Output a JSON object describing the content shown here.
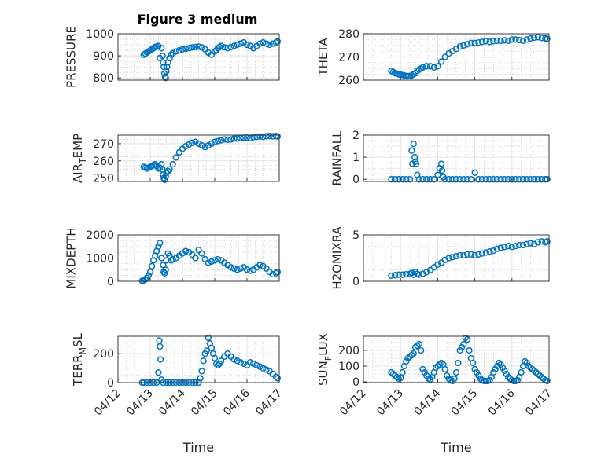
{
  "figure_title": "Figure 3 medium",
  "colors": {
    "marker": "#0072BD",
    "axis": "#262626",
    "grid": "#b8b8b8"
  },
  "chart_data": [
    {
      "type": "scatter",
      "ylabel": "PRESSURE",
      "ylabel_parts": [
        {
          "t": "PRESSURE",
          "sub": false
        }
      ],
      "xlabel": "",
      "ylim": [
        790,
        1000
      ],
      "yticks": [
        800,
        900,
        1000
      ],
      "ytick_labels": [
        "800",
        "900",
        "1000"
      ],
      "x": [
        0.8,
        0.85,
        0.9,
        0.95,
        1.0,
        1.05,
        1.1,
        1.15,
        1.2,
        1.25,
        1.3,
        1.35,
        1.38,
        1.4,
        1.42,
        1.44,
        1.46,
        1.48,
        1.5,
        1.52,
        1.55,
        1.6,
        1.65,
        1.7,
        1.8,
        1.9,
        2.0,
        2.1,
        2.2,
        2.3,
        2.4,
        2.5,
        2.6,
        2.7,
        2.8,
        2.9,
        3.0,
        3.05,
        3.1,
        3.15,
        3.2,
        3.3,
        3.4,
        3.5,
        3.6,
        3.7,
        3.8,
        3.9,
        4.0,
        4.1,
        4.2,
        4.3,
        4.4,
        4.5,
        4.6,
        4.7,
        4.8,
        4.9,
        4.95
      ],
      "y": [
        905,
        910,
        915,
        920,
        925,
        930,
        935,
        940,
        942,
        945,
        890,
        935,
        900,
        870,
        850,
        820,
        805,
        800,
        830,
        850,
        870,
        890,
        905,
        912,
        920,
        925,
        930,
        932,
        935,
        938,
        940,
        942,
        938,
        930,
        915,
        905,
        920,
        925,
        935,
        940,
        945,
        938,
        935,
        940,
        945,
        950,
        955,
        960,
        950,
        945,
        935,
        945,
        955,
        960,
        955,
        950,
        955,
        960,
        965
      ]
    },
    {
      "type": "scatter",
      "ylabel": "THETA",
      "ylabel_parts": [
        {
          "t": "THETA",
          "sub": false
        }
      ],
      "xlabel": "",
      "ylim": [
        260,
        280
      ],
      "yticks": [
        260,
        270,
        280
      ],
      "ytick_labels": [
        "260",
        "270",
        "280"
      ],
      "x": [
        0.75,
        0.8,
        0.85,
        0.9,
        0.95,
        1.0,
        1.05,
        1.1,
        1.15,
        1.2,
        1.25,
        1.3,
        1.35,
        1.4,
        1.45,
        1.5,
        1.55,
        1.6,
        1.7,
        1.8,
        1.9,
        2.0,
        2.1,
        2.2,
        2.3,
        2.4,
        2.5,
        2.6,
        2.7,
        2.8,
        2.9,
        3.0,
        3.1,
        3.2,
        3.3,
        3.4,
        3.5,
        3.6,
        3.7,
        3.8,
        3.9,
        4.0,
        4.1,
        4.2,
        4.3,
        4.4,
        4.5,
        4.6,
        4.7,
        4.8,
        4.9,
        4.95
      ],
      "y": [
        264,
        263.5,
        263,
        262.8,
        262.5,
        262.3,
        262.2,
        262,
        261.8,
        261.7,
        261.8,
        262,
        262.5,
        263,
        264,
        264.5,
        265,
        265.5,
        266,
        266,
        265.5,
        266,
        268,
        270,
        271.5,
        272.5,
        273.5,
        274.5,
        275,
        275.5,
        276,
        276,
        276.2,
        276.5,
        276.8,
        276.5,
        276.8,
        277,
        277,
        277.2,
        277,
        277.5,
        277.5,
        277.3,
        277,
        277.5,
        278,
        278.3,
        278.5,
        278.2,
        278,
        277.8
      ]
    },
    {
      "type": "scatter",
      "ylabel": "AIR_TEMP",
      "ylabel_parts": [
        {
          "t": "AIR",
          "sub": false
        },
        {
          "t": "T",
          "sub": true
        },
        {
          "t": "EMP",
          "sub": false
        }
      ],
      "xlabel": "",
      "ylim": [
        248,
        275
      ],
      "yticks": [
        250,
        260,
        270
      ],
      "ytick_labels": [
        "250",
        "260",
        "270"
      ],
      "x": [
        0.8,
        0.85,
        0.9,
        0.95,
        1.0,
        1.05,
        1.1,
        1.15,
        1.2,
        1.25,
        1.3,
        1.35,
        1.38,
        1.4,
        1.42,
        1.45,
        1.48,
        1.5,
        1.55,
        1.6,
        1.7,
        1.8,
        1.9,
        2.0,
        2.1,
        2.2,
        2.3,
        2.4,
        2.5,
        2.6,
        2.7,
        2.8,
        2.9,
        3.0,
        3.1,
        3.2,
        3.3,
        3.4,
        3.5,
        3.6,
        3.7,
        3.8,
        3.9,
        4.0,
        4.1,
        4.2,
        4.3,
        4.4,
        4.5,
        4.6,
        4.7,
        4.8,
        4.9,
        4.95
      ],
      "y": [
        256.5,
        256,
        255.5,
        256,
        256.5,
        257,
        257.5,
        258,
        257,
        255.5,
        256,
        258,
        255,
        252,
        250,
        249,
        251,
        253,
        254,
        255,
        258,
        262,
        265,
        267,
        268.5,
        269.5,
        270.5,
        271,
        270,
        269,
        268,
        269,
        270,
        271,
        271.5,
        272,
        272.5,
        272.3,
        272.5,
        273,
        273,
        273.2,
        273.5,
        273.5,
        273.3,
        273.8,
        274,
        274.2,
        274,
        274.3,
        274.5,
        274.3,
        274.5,
        274.2
      ]
    },
    {
      "type": "scatter",
      "ylabel": "RAINFALL",
      "ylabel_parts": [
        {
          "t": "RAINFALL",
          "sub": false
        }
      ],
      "xlabel": "",
      "ylim": [
        -0.1,
        2
      ],
      "yticks": [
        0,
        1,
        2
      ],
      "ytick_labels": [
        "0",
        "1",
        "2"
      ],
      "x": [
        0.75,
        0.85,
        0.95,
        1.05,
        1.15,
        1.25,
        1.3,
        1.32,
        1.35,
        1.38,
        1.4,
        1.42,
        1.45,
        1.5,
        1.6,
        1.7,
        1.8,
        1.9,
        2.0,
        2.05,
        2.1,
        2.12,
        2.15,
        2.2,
        2.3,
        2.4,
        2.5,
        2.6,
        2.7,
        2.8,
        2.9,
        3.0,
        3.1,
        3.2,
        3.3,
        3.4,
        3.5,
        3.6,
        3.7,
        3.8,
        3.9,
        4.0,
        4.1,
        4.2,
        4.3,
        4.4,
        4.5,
        4.6,
        4.7,
        4.8,
        4.9,
        4.95
      ],
      "y": [
        0,
        0,
        0,
        0,
        0,
        0,
        1.3,
        0.7,
        1.6,
        1.0,
        0.8,
        0.7,
        0.2,
        0,
        0,
        0,
        0,
        0,
        0.2,
        0.5,
        0.7,
        0.4,
        0.1,
        0,
        0,
        0,
        0,
        0,
        0,
        0,
        0,
        0.3,
        0,
        0,
        0,
        0,
        0,
        0,
        0,
        0,
        0,
        0,
        0,
        0,
        0,
        0,
        0,
        0,
        0,
        0,
        0,
        0
      ]
    },
    {
      "type": "scatter",
      "ylabel": "MIXDEPTH",
      "ylabel_parts": [
        {
          "t": "MIXDEPTH",
          "sub": false
        }
      ],
      "xlabel": "",
      "ylim": [
        0,
        2000
      ],
      "yticks": [
        0,
        1000,
        2000
      ],
      "ytick_labels": [
        "0",
        "1000",
        "2000"
      ],
      "x": [
        0.75,
        0.8,
        0.85,
        0.9,
        0.95,
        1.0,
        1.05,
        1.1,
        1.15,
        1.2,
        1.25,
        1.3,
        1.35,
        1.4,
        1.42,
        1.45,
        1.48,
        1.5,
        1.55,
        1.6,
        1.65,
        1.7,
        1.8,
        1.9,
        2.0,
        2.1,
        2.2,
        2.3,
        2.4,
        2.5,
        2.6,
        2.7,
        2.8,
        2.9,
        3.0,
        3.1,
        3.2,
        3.3,
        3.4,
        3.5,
        3.6,
        3.7,
        3.8,
        3.9,
        4.0,
        4.1,
        4.2,
        4.3,
        4.4,
        4.5,
        4.6,
        4.7,
        4.8,
        4.9,
        4.95
      ],
      "y": [
        20,
        40,
        80,
        150,
        250,
        400,
        650,
        900,
        1100,
        1300,
        1500,
        1650,
        1000,
        700,
        400,
        350,
        500,
        900,
        1200,
        1100,
        900,
        950,
        1000,
        1100,
        1200,
        1300,
        1250,
        1150,
        1000,
        1350,
        1200,
        950,
        800,
        850,
        900,
        950,
        900,
        800,
        700,
        600,
        550,
        500,
        550,
        600,
        500,
        450,
        500,
        600,
        700,
        650,
        550,
        400,
        300,
        350,
        400
      ]
    },
    {
      "type": "scatter",
      "ylabel": "H2OMIXRA",
      "ylabel_parts": [
        {
          "t": "H2OMIXRA",
          "sub": false
        }
      ],
      "xlabel": "",
      "ylim": [
        0,
        5
      ],
      "yticks": [
        0,
        5
      ],
      "ytick_labels": [
        "0",
        "5"
      ],
      "x": [
        0.75,
        0.85,
        0.95,
        1.05,
        1.15,
        1.25,
        1.3,
        1.35,
        1.4,
        1.45,
        1.5,
        1.6,
        1.7,
        1.8,
        1.9,
        2.0,
        2.1,
        2.2,
        2.3,
        2.4,
        2.5,
        2.6,
        2.7,
        2.8,
        2.9,
        3.0,
        3.1,
        3.2,
        3.3,
        3.4,
        3.5,
        3.6,
        3.7,
        3.8,
        3.9,
        4.0,
        4.1,
        4.2,
        4.3,
        4.4,
        4.5,
        4.6,
        4.7,
        4.8,
        4.9,
        4.95
      ],
      "y": [
        0.6,
        0.65,
        0.7,
        0.7,
        0.75,
        0.8,
        0.9,
        0.7,
        1.0,
        0.8,
        0.7,
        0.8,
        1.0,
        1.2,
        1.5,
        1.8,
        2.0,
        2.3,
        2.5,
        2.6,
        2.7,
        2.8,
        2.8,
        2.9,
        2.9,
        2.8,
        2.9,
        3.0,
        3.1,
        3.2,
        3.3,
        3.5,
        3.6,
        3.7,
        3.8,
        3.7,
        3.8,
        3.9,
        3.9,
        4.0,
        4.1,
        4.0,
        4.2,
        4.3,
        4.2,
        4.3
      ]
    },
    {
      "type": "scatter",
      "ylabel": "TERR_MSL",
      "ylabel_parts": [
        {
          "t": "TERR",
          "sub": false
        },
        {
          "t": "M",
          "sub": true
        },
        {
          "t": "SL",
          "sub": false
        }
      ],
      "xlabel": "Time",
      "ylim": [
        0,
        320
      ],
      "yticks": [
        0,
        200
      ],
      "ytick_labels": [
        "0",
        "200"
      ],
      "x": [
        0.75,
        0.8,
        0.9,
        1.0,
        1.1,
        1.2,
        1.25,
        1.28,
        1.3,
        1.32,
        1.35,
        1.4,
        1.5,
        1.6,
        1.7,
        1.8,
        1.9,
        2.0,
        2.1,
        2.2,
        2.3,
        2.4,
        2.5,
        2.55,
        2.6,
        2.65,
        2.7,
        2.75,
        2.8,
        2.85,
        2.9,
        2.95,
        3.0,
        3.05,
        3.1,
        3.15,
        3.2,
        3.3,
        3.4,
        3.5,
        3.6,
        3.7,
        3.8,
        3.9,
        4.0,
        4.1,
        4.2,
        4.3,
        4.4,
        4.5,
        4.6,
        4.7,
        4.8,
        4.9,
        4.95
      ],
      "y": [
        0,
        0,
        0,
        0,
        0,
        0,
        70,
        290,
        250,
        160,
        20,
        0,
        0,
        0,
        0,
        0,
        0,
        0,
        0,
        0,
        0,
        0,
        0,
        30,
        80,
        150,
        200,
        220,
        310,
        270,
        240,
        200,
        170,
        130,
        120,
        130,
        150,
        180,
        200,
        180,
        160,
        150,
        140,
        130,
        120,
        140,
        130,
        120,
        110,
        100,
        90,
        80,
        60,
        40,
        30
      ]
    },
    {
      "type": "scatter",
      "ylabel": "SUN_FLUX",
      "ylabel_parts": [
        {
          "t": "SUN",
          "sub": false
        },
        {
          "t": "F",
          "sub": true
        },
        {
          "t": "LUX",
          "sub": false
        }
      ],
      "xlabel": "Time",
      "ylim": [
        -5,
        290
      ],
      "yticks": [
        0,
        100,
        200
      ],
      "ytick_labels": [
        "0",
        "100",
        "200"
      ],
      "x": [
        0.75,
        0.8,
        0.85,
        0.9,
        0.95,
        1.0,
        1.05,
        1.1,
        1.15,
        1.2,
        1.25,
        1.3,
        1.35,
        1.4,
        1.45,
        1.5,
        1.55,
        1.6,
        1.65,
        1.7,
        1.75,
        1.8,
        1.85,
        1.9,
        1.95,
        2.0,
        2.05,
        2.1,
        2.15,
        2.2,
        2.25,
        2.3,
        2.35,
        2.4,
        2.45,
        2.5,
        2.55,
        2.6,
        2.65,
        2.7,
        2.75,
        2.8,
        2.85,
        2.9,
        2.95,
        3.0,
        3.05,
        3.1,
        3.15,
        3.2,
        3.25,
        3.3,
        3.35,
        3.4,
        3.45,
        3.5,
        3.55,
        3.6,
        3.65,
        3.7,
        3.75,
        3.8,
        3.85,
        3.9,
        3.95,
        4.0,
        4.05,
        4.1,
        4.15,
        4.2,
        4.25,
        4.3,
        4.35,
        4.4,
        4.45,
        4.5,
        4.55,
        4.6,
        4.65,
        4.7,
        4.75,
        4.8,
        4.85,
        4.9,
        4.95
      ],
      "y": [
        60,
        50,
        40,
        30,
        20,
        25,
        60,
        100,
        130,
        150,
        160,
        170,
        180,
        220,
        230,
        240,
        200,
        80,
        60,
        40,
        20,
        15,
        30,
        60,
        90,
        100,
        110,
        120,
        110,
        80,
        40,
        20,
        10,
        5,
        20,
        60,
        120,
        200,
        220,
        240,
        280,
        270,
        200,
        150,
        120,
        80,
        60,
        40,
        20,
        10,
        5,
        5,
        5,
        10,
        30,
        60,
        80,
        100,
        120,
        110,
        90,
        70,
        50,
        30,
        20,
        10,
        5,
        5,
        10,
        30,
        60,
        100,
        130,
        120,
        100,
        90,
        80,
        70,
        60,
        50,
        40,
        30,
        20,
        10,
        5
      ]
    }
  ],
  "shared_x": {
    "label": "Time",
    "range": [
      0,
      5
    ],
    "ticks": [
      0,
      1,
      2,
      3,
      4,
      5
    ],
    "tick_labels": [
      "04/12",
      "04/13",
      "04/14",
      "04/15",
      "04/16",
      "04/17"
    ]
  }
}
